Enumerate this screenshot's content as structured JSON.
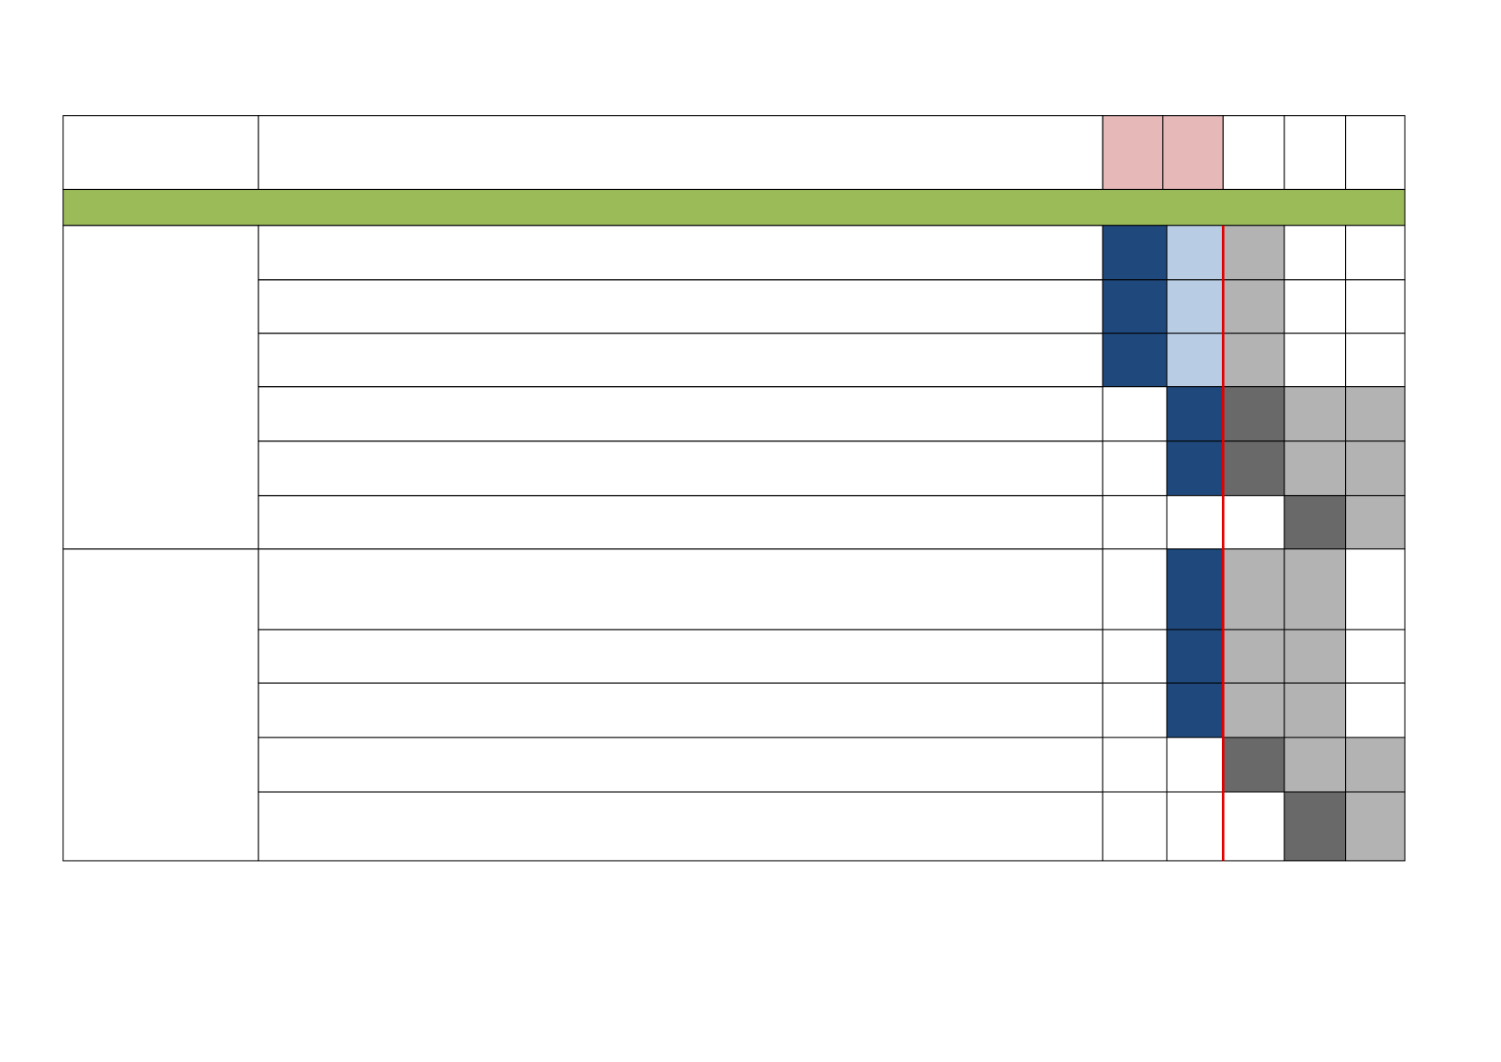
{
  "table": {
    "header_colors": [
      "#e6b8b7",
      "#e6b8b7",
      "#ffffff",
      "#ffffff",
      "#ffffff"
    ],
    "band_color": "#9bbb59",
    "marker_color": "#e00000",
    "rows": [
      [
        "#1f497d",
        "#b8cce4",
        "#b3b3b3",
        "#ffffff",
        "#ffffff"
      ],
      [
        "#1f497d",
        "#b8cce4",
        "#b3b3b3",
        "#ffffff",
        "#ffffff"
      ],
      [
        "#1f497d",
        "#b8cce4",
        "#b3b3b3",
        "#ffffff",
        "#ffffff"
      ],
      [
        "#ffffff",
        "#1f497d",
        "#696969",
        "#b3b3b3",
        "#b3b3b3"
      ],
      [
        "#ffffff",
        "#1f497d",
        "#696969",
        "#b3b3b3",
        "#b3b3b3"
      ],
      [
        "#ffffff",
        "#ffffff",
        "#ffffff",
        "#696969",
        "#b3b3b3"
      ],
      [
        "#ffffff",
        "#1f497d",
        "#b3b3b3",
        "#b3b3b3",
        "#ffffff"
      ],
      [
        "#ffffff",
        "#1f497d",
        "#b3b3b3",
        "#b3b3b3",
        "#ffffff"
      ],
      [
        "#ffffff",
        "#1f497d",
        "#b3b3b3",
        "#b3b3b3",
        "#ffffff"
      ],
      [
        "#ffffff",
        "#ffffff",
        "#696969",
        "#b3b3b3",
        "#b3b3b3"
      ],
      [
        "#ffffff",
        "#ffffff",
        "#ffffff",
        "#696969",
        "#b3b3b3"
      ]
    ]
  }
}
